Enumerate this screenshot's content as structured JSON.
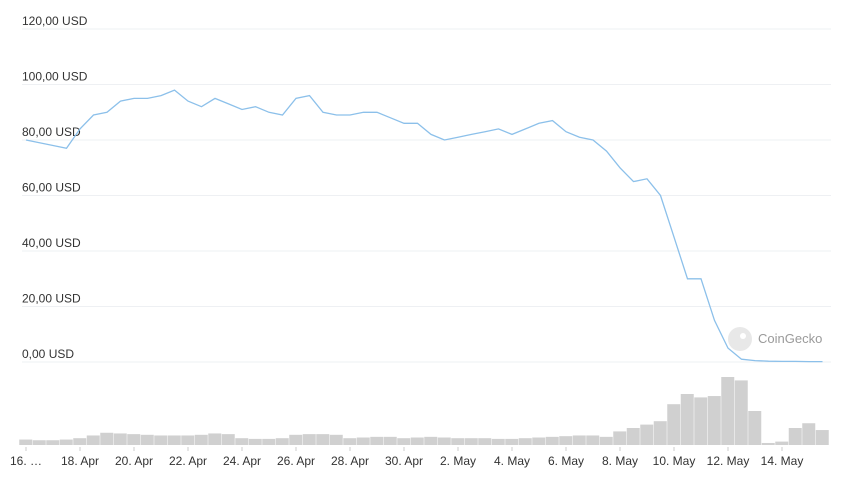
{
  "chart_data": {
    "type": "line",
    "categories": [
      "16. …",
      null,
      null,
      null,
      "18. Apr",
      null,
      null,
      null,
      "20. Apr",
      null,
      null,
      null,
      "22. Apr",
      null,
      null,
      null,
      "24. Apr",
      null,
      null,
      null,
      "26. Apr",
      null,
      null,
      null,
      "28. Apr",
      null,
      null,
      null,
      "30. Apr",
      null,
      null,
      null,
      "2. May",
      null,
      null,
      null,
      "4. May",
      null,
      null,
      null,
      "6. May",
      null,
      null,
      null,
      "8. May",
      null,
      null,
      null,
      "10. May",
      null,
      null,
      null,
      "12. May",
      null,
      null,
      null,
      "14. May",
      null,
      null,
      null
    ],
    "values": [
      80,
      79,
      78,
      77,
      84,
      89,
      90,
      94,
      95,
      95,
      96,
      98,
      94,
      92,
      95,
      93,
      91,
      92,
      90,
      89,
      95,
      96,
      90,
      89,
      89,
      90,
      90,
      88,
      86,
      86,
      82,
      80,
      81,
      82,
      83,
      84,
      82,
      84,
      86,
      87,
      83,
      81,
      80,
      76,
      70,
      65,
      66,
      60,
      45,
      30,
      30,
      15,
      5,
      1,
      0.5,
      0.3,
      0.2,
      0.2,
      0.15,
      0.15
    ],
    "color": "#8cc0ea",
    "volume": [
      8,
      7,
      7,
      8,
      10,
      14,
      18,
      17,
      16,
      15,
      14,
      14,
      14,
      15,
      17,
      16,
      10,
      9,
      9,
      10,
      15,
      16,
      16,
      15,
      10,
      11,
      12,
      12,
      10,
      11,
      12,
      11,
      10,
      10,
      10,
      9,
      9,
      10,
      11,
      12,
      13,
      14,
      14,
      12,
      20,
      25,
      30,
      35,
      60,
      75,
      70,
      72,
      100,
      95,
      50,
      3,
      5,
      25,
      32,
      22
    ],
    "volume_color": "#d0d0d0",
    "y2lim": [
      0,
      100
    ],
    "ylim": [
      0,
      120
    ],
    "yticks": [
      {
        "value": 0,
        "label": "0,00 USD"
      },
      {
        "value": 20,
        "label": "20,00 USD"
      },
      {
        "value": 40,
        "label": "40,00 USD"
      },
      {
        "value": 60,
        "label": "60,00 USD"
      },
      {
        "value": 80,
        "label": "80,00 USD"
      },
      {
        "value": 100,
        "label": "100,00 USD"
      },
      {
        "value": 120,
        "label": "120,00 USD"
      }
    ],
    "grid": true,
    "watermark": "CoinGecko"
  }
}
